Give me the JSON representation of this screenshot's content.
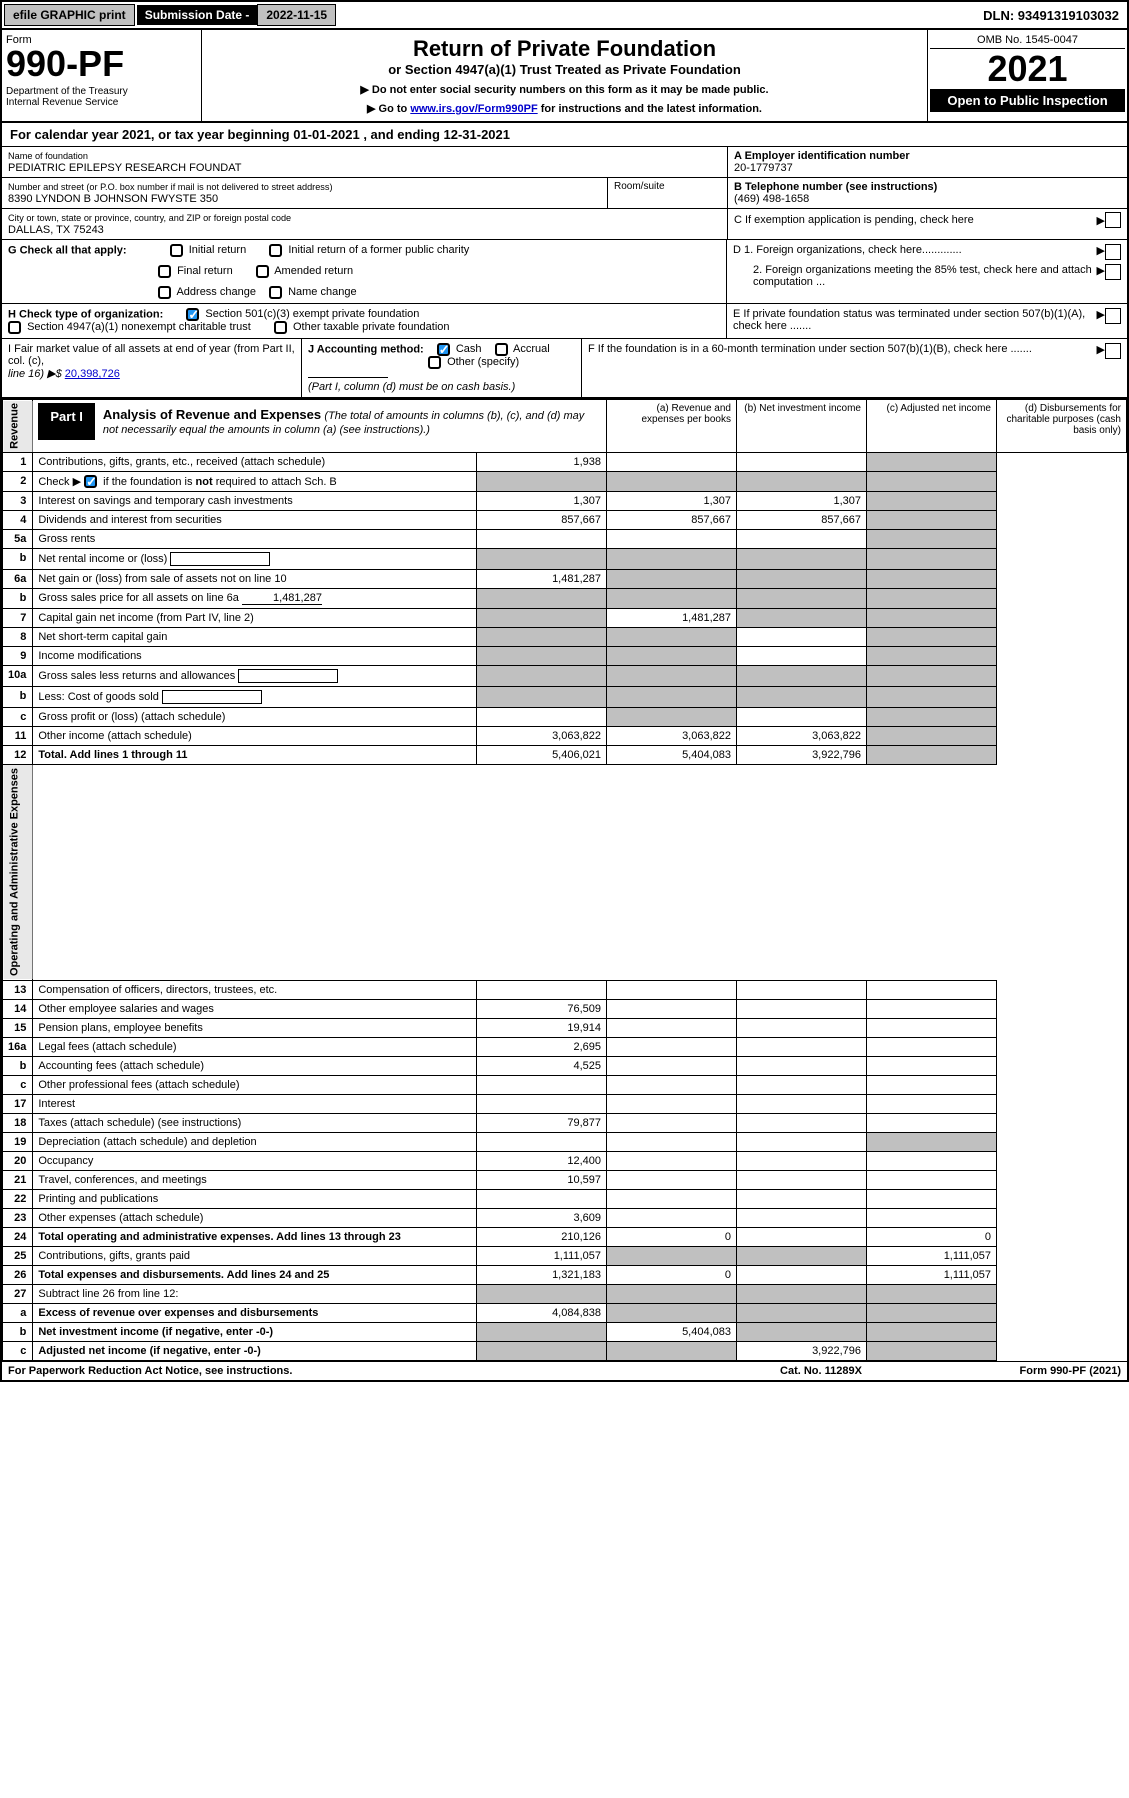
{
  "topbar": {
    "efile": "efile GRAPHIC print",
    "sub_label": "Submission Date - ",
    "sub_val": "2022-11-15",
    "dln": "DLN: 93491319103032"
  },
  "header": {
    "form": "Form",
    "num": "990-PF",
    "dept": "Department of the Treasury\nInternal Revenue Service",
    "title": "Return of Private Foundation",
    "sub": "or Section 4947(a)(1) Trust Treated as Private Foundation",
    "note1": "▶ Do not enter social security numbers on this form as it may be made public.",
    "note2_pre": "▶ Go to ",
    "note2_link": "www.irs.gov/Form990PF",
    "note2_post": " for instructions and the latest information.",
    "omb": "OMB No. 1545-0047",
    "year": "2021",
    "inspect": "Open to Public Inspection"
  },
  "calyear": "For calendar year 2021, or tax year beginning 01-01-2021                    , and ending 12-31-2021",
  "info": {
    "name_label": "Name of foundation",
    "name_val": "PEDIATRIC EPILEPSY RESEARCH FOUNDAT",
    "addr_label": "Number and street (or P.O. box number if mail is not delivered to street address)",
    "addr_val": "8390 LYNDON B JOHNSON FWYSTE 350",
    "room_label": "Room/suite",
    "city_label": "City or town, state or province, country, and ZIP or foreign postal code",
    "city_val": "DALLAS, TX  75243",
    "a_label": "A Employer identification number",
    "a_val": "20-1779737",
    "b_label": "B Telephone number (see instructions)",
    "b_val": "(469) 498-1658",
    "c_label": "C If exemption application is pending, check here",
    "d1": "D 1. Foreign organizations, check here.............",
    "d2": "2. Foreign organizations meeting the 85% test, check here and attach computation ...",
    "e": "E  If private foundation status was terminated under section 507(b)(1)(A), check here .......",
    "f": "F  If the foundation is in a 60-month termination under section 507(b)(1)(B), check here .......",
    "g_label": "G Check all that apply:",
    "g_opts": [
      "Initial return",
      "Initial return of a former public charity",
      "Final return",
      "Amended return",
      "Address change",
      "Name change"
    ],
    "h_label": "H Check type of organization:",
    "h1": "Section 501(c)(3) exempt private foundation",
    "h2": "Section 4947(a)(1) nonexempt charitable trust",
    "h3": "Other taxable private foundation",
    "i_label": "I Fair market value of all assets at end of year (from Part II, col. (c),",
    "i_line": "line 16) ▶$ ",
    "i_val": "20,398,726",
    "j_label": "J Accounting method:",
    "j_cash": "Cash",
    "j_accrual": "Accrual",
    "j_other": "Other (specify)",
    "j_note": "(Part I, column (d) must be on cash basis.)"
  },
  "part1": {
    "label": "Part I",
    "title": "Analysis of Revenue and Expenses",
    "title_note": "(The total of amounts in columns (b), (c), and (d) may not necessarily equal the amounts in column (a) (see instructions).)",
    "cols": {
      "a": "(a)   Revenue and expenses per books",
      "b": "(b)   Net investment income",
      "c": "(c)   Adjusted net income",
      "d": "(d)   Disbursements for charitable purposes (cash basis only)"
    },
    "revenue_label": "Revenue",
    "expense_label": "Operating and Administrative Expenses",
    "rows": [
      {
        "n": "1",
        "d": "Contributions, gifts, grants, etc., received (attach schedule)",
        "a": "1,938",
        "greyD": true
      },
      {
        "n": "2",
        "d": "Check ▶ ✓ if the foundation is not required to attach Sch. B",
        "dots": true,
        "greyA": true,
        "greyB": true,
        "greyC": true,
        "greyD": true,
        "checked": true
      },
      {
        "n": "3",
        "d": "Interest on savings and temporary cash investments",
        "a": "1,307",
        "b": "1,307",
        "c": "1,307",
        "greyD": true
      },
      {
        "n": "4",
        "d": "Dividends and interest from securities",
        "dots": true,
        "a": "857,667",
        "b": "857,667",
        "c": "857,667",
        "greyD": true
      },
      {
        "n": "5a",
        "d": "Gross rents",
        "dots": true,
        "greyD": true
      },
      {
        "n": "b",
        "d": "Net rental income or (loss)",
        "inline": true,
        "greyA": true,
        "greyB": true,
        "greyC": true,
        "greyD": true
      },
      {
        "n": "6a",
        "d": "Net gain or (loss) from sale of assets not on line 10",
        "a": "1,481,287",
        "greyB": true,
        "greyC": true,
        "greyD": true
      },
      {
        "n": "b",
        "d": "Gross sales price for all assets on line 6a",
        "inline_val": "1,481,287",
        "greyA": true,
        "greyB": true,
        "greyC": true,
        "greyD": true
      },
      {
        "n": "7",
        "d": "Capital gain net income (from Part IV, line 2)",
        "dots": true,
        "greyA": true,
        "b": "1,481,287",
        "greyC": true,
        "greyD": true
      },
      {
        "n": "8",
        "d": "Net short-term capital gain",
        "dots": true,
        "greyA": true,
        "greyB": true,
        "greyD": true
      },
      {
        "n": "9",
        "d": "Income modifications",
        "dots": true,
        "greyA": true,
        "greyB": true,
        "greyD": true
      },
      {
        "n": "10a",
        "d": "Gross sales less returns and allowances",
        "inline": true,
        "greyA": true,
        "greyB": true,
        "greyC": true,
        "greyD": true
      },
      {
        "n": "b",
        "d": "Less: Cost of goods sold",
        "dots": true,
        "inline": true,
        "greyA": true,
        "greyB": true,
        "greyC": true,
        "greyD": true
      },
      {
        "n": "c",
        "d": "Gross profit or (loss) (attach schedule)",
        "dots": true,
        "greyB": true,
        "greyD": true
      },
      {
        "n": "11",
        "d": "Other income (attach schedule)",
        "dots": true,
        "a": "3,063,822",
        "b": "3,063,822",
        "c": "3,063,822",
        "greyD": true
      },
      {
        "n": "12",
        "d": "Total. Add lines 1 through 11",
        "dots": true,
        "bold": true,
        "a": "5,406,021",
        "b": "5,404,083",
        "c": "3,922,796",
        "greyD": true
      }
    ],
    "erows": [
      {
        "n": "13",
        "d": "Compensation of officers, directors, trustees, etc."
      },
      {
        "n": "14",
        "d": "Other employee salaries and wages",
        "dots": true,
        "a": "76,509"
      },
      {
        "n": "15",
        "d": "Pension plans, employee benefits",
        "dots": true,
        "a": "19,914"
      },
      {
        "n": "16a",
        "d": "Legal fees (attach schedule)",
        "dots": true,
        "a": "2,695"
      },
      {
        "n": "b",
        "d": "Accounting fees (attach schedule)",
        "dots": true,
        "a": "4,525"
      },
      {
        "n": "c",
        "d": "Other professional fees (attach schedule)",
        "dots": true
      },
      {
        "n": "17",
        "d": "Interest",
        "dots": true
      },
      {
        "n": "18",
        "d": "Taxes (attach schedule) (see instructions)",
        "dots": true,
        "a": "79,877"
      },
      {
        "n": "19",
        "d": "Depreciation (attach schedule) and depletion",
        "dots": true,
        "greyD": true
      },
      {
        "n": "20",
        "d": "Occupancy",
        "dots": true,
        "a": "12,400"
      },
      {
        "n": "21",
        "d": "Travel, conferences, and meetings",
        "dots": true,
        "a": "10,597"
      },
      {
        "n": "22",
        "d": "Printing and publications",
        "dots": true
      },
      {
        "n": "23",
        "d": "Other expenses (attach schedule)",
        "dots": true,
        "a": "3,609"
      },
      {
        "n": "24",
        "d": "Total operating and administrative expenses. Add lines 13 through 23",
        "dots": true,
        "bold": true,
        "a": "210,126",
        "b": "0",
        "dv": "0"
      },
      {
        "n": "25",
        "d": "Contributions, gifts, grants paid",
        "dots": true,
        "a": "1,111,057",
        "greyB": true,
        "greyC": true,
        "dv": "1,111,057"
      },
      {
        "n": "26",
        "d": "Total expenses and disbursements. Add lines 24 and 25",
        "bold": true,
        "a": "1,321,183",
        "b": "0",
        "dv": "1,111,057"
      },
      {
        "n": "27",
        "d": "Subtract line 26 from line 12:",
        "greyA": true,
        "greyB": true,
        "greyC": true,
        "greyD": true
      },
      {
        "n": "a",
        "d": "Excess of revenue over expenses and disbursements",
        "bold": true,
        "a": "4,084,838",
        "greyB": true,
        "greyC": true,
        "greyD": true
      },
      {
        "n": "b",
        "d": "Net investment income (if negative, enter -0-)",
        "bold": true,
        "greyA": true,
        "b": "5,404,083",
        "greyC": true,
        "greyD": true
      },
      {
        "n": "c",
        "d": "Adjusted net income (if negative, enter -0-)",
        "dots": true,
        "bold": true,
        "greyA": true,
        "greyB": true,
        "c": "3,922,796",
        "greyD": true
      }
    ]
  },
  "footer": {
    "l": "For Paperwork Reduction Act Notice, see instructions.",
    "m": "Cat. No. 11289X",
    "r": "Form 990-PF (2021)"
  }
}
